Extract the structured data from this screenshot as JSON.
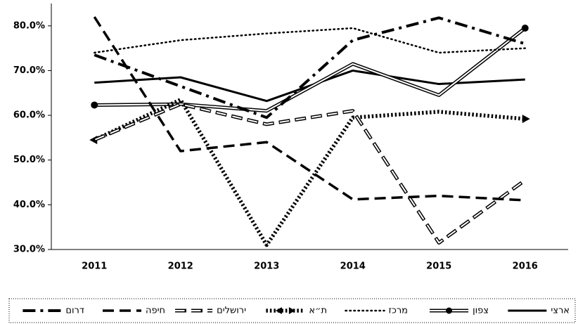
{
  "chart_data": {
    "type": "line",
    "categories": [
      "2011",
      "2012",
      "2013",
      "2014",
      "2015",
      "2016"
    ],
    "ylim": [
      30,
      85
    ],
    "yticks": [
      {
        "value": 30,
        "label": "30.0%"
      },
      {
        "value": 40,
        "label": "40.0%"
      },
      {
        "value": 50,
        "label": "50.0%"
      },
      {
        "value": 60,
        "label": "60.0%"
      },
      {
        "value": 70,
        "label": "70.0%"
      },
      {
        "value": 80,
        "label": "80.0%"
      }
    ],
    "grid": false,
    "legend": "bottom",
    "series": [
      {
        "name": "ארצי",
        "color": "#000000",
        "style": "solid",
        "values": [
          67.3,
          68.5,
          63.2,
          70.0,
          67.0,
          68.0
        ]
      },
      {
        "name": "צפון",
        "color": "#000000",
        "style": "double",
        "values": [
          62.3,
          62.5,
          61.0,
          71.5,
          64.5,
          79.5
        ]
      },
      {
        "name": "מרכז",
        "color": "#000000",
        "style": "dotted",
        "values": [
          74.0,
          76.8,
          78.3,
          79.5,
          74.0,
          75.0
        ]
      },
      {
        "name": "ת״א",
        "color": "#000000",
        "style": "heavy-dotted",
        "values": [
          54.5,
          63.5,
          31.0,
          59.5,
          60.8,
          59.2
        ]
      },
      {
        "name": "ירושלים",
        "color": "#000000",
        "style": "hollow-dashed",
        "values": [
          54.5,
          62.5,
          58.0,
          61.0,
          31.5,
          45.5
        ]
      },
      {
        "name": "חיפה",
        "color": "#000000",
        "style": "dashed",
        "values": [
          82.0,
          52.0,
          54.0,
          41.2,
          42.0,
          41.0
        ]
      },
      {
        "name": "דרום",
        "color": "#000000",
        "style": "dash-dot",
        "values": [
          73.5,
          66.5,
          59.5,
          76.8,
          81.8,
          76.0
        ]
      }
    ]
  }
}
